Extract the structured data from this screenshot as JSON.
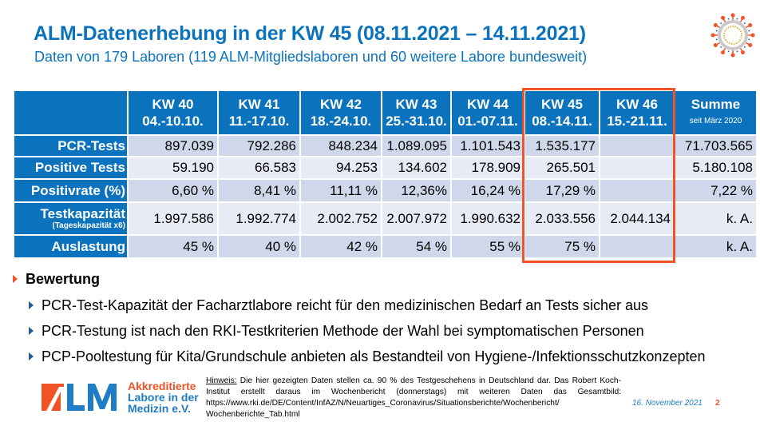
{
  "header": {
    "title": "ALM-Datenerhebung in der KW 45 (08.11.2021 – 14.11.2021)",
    "subtitle": "Daten von 179 Laboren (119 ALM-Mitgliedslaboren und 60 weitere Labore bundesweit)",
    "icon": "coronavirus-icon"
  },
  "table": {
    "columns": [
      {
        "kw": "KW 40",
        "dates": "04.-10.10."
      },
      {
        "kw": "KW 41",
        "dates": "11.-17.10."
      },
      {
        "kw": "KW 42",
        "dates": "18.-24.10."
      },
      {
        "kw": "KW 43",
        "dates": "25.-31.10."
      },
      {
        "kw": "KW 44",
        "dates": "01.-07.11."
      },
      {
        "kw": "KW 45",
        "dates": "08.-14.11."
      },
      {
        "kw": "KW 46",
        "dates": "15.-21.11."
      },
      {
        "kw": "Summe",
        "dates": "seit März 2020"
      }
    ],
    "highlighted_columns": [
      "KW 45",
      "KW 46"
    ],
    "highlight_color": "#ef5326",
    "rows": [
      {
        "label": "PCR-Tests",
        "sublabel": "",
        "values": [
          "897.039",
          "792.286",
          "848.234",
          "1.089.095",
          "1.101.543",
          "1.535.177",
          "",
          "71.703.565"
        ]
      },
      {
        "label": "Positive Tests",
        "sublabel": "",
        "values": [
          "59.190",
          "66.583",
          "94.253",
          "134.602",
          "178.909",
          "265.501",
          "",
          "5.180.108"
        ]
      },
      {
        "label": "Positivrate (%)",
        "sublabel": "",
        "values": [
          "6,60 %",
          "8,41 %",
          "11,11 %",
          "12,36%",
          "16,24 %",
          "17,29 %",
          "",
          "7,22 %"
        ]
      },
      {
        "label": "Testkapazität",
        "sublabel": "(Tageskapazität x6)",
        "values": [
          "1.997.586",
          "1.992.774",
          "2.002.752",
          "2.007.972",
          "1.990.632",
          "2.033.556",
          "2.044.134",
          "k. A."
        ]
      },
      {
        "label": "Auslastung",
        "sublabel": "",
        "values": [
          "45 %",
          "40 %",
          "42 %",
          "54 %",
          "55 %",
          "75 %",
          "",
          "k. A."
        ]
      }
    ]
  },
  "assessment": {
    "heading": "Bewertung",
    "items": [
      "PCR-Test-Kapazität der Facharztlabore reicht für den medizinischen Bedarf an Tests sicher aus",
      "PCR-Testung ist nach den RKI-Testkriterien Methode der Wahl bei symptomatischen Personen",
      "PCP-Pooltestung für Kita/Grundschule anbieten als Bestandteil von Hygiene-/Infektionsschutzkonzepten"
    ]
  },
  "footer": {
    "logo_letters": "ALM",
    "logo_line1": "Akkreditierte",
    "logo_line2": "Labore in der",
    "logo_line3": "Medizin e.V.",
    "note_label": "Hinweis:",
    "note_text": " Die hier gezeigten Daten stellen ca. 90 % des Testgeschehens in Deutschland dar. Das Robert Koch-Institut erstellt daraus im Wochenbericht (donnerstags) mit weiteren Daten das Gesamtbild: https://www.rki.de/DE/Content/InfAZ/N/Neuartiges_Coronavirus/Situationsberichte/Wochenbericht/ Wochenberichte_Tab.html",
    "date": "16. November 2021",
    "page_number": "2"
  }
}
